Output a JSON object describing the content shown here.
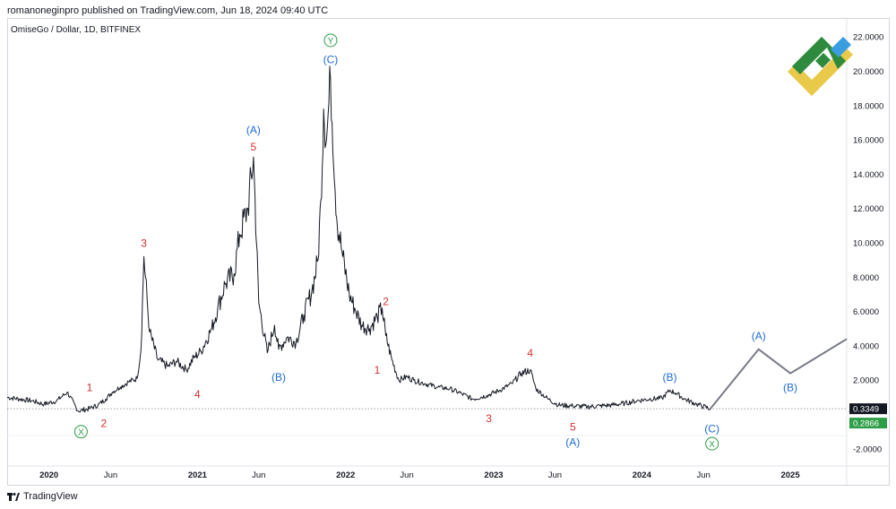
{
  "header": {
    "published_text": "romanoneginpro published on TradingView.com, Jun 18, 2024 09:40 UTC"
  },
  "footer": {
    "brand_text": "TradingView",
    "logo_icon": "tradingview-logo-icon"
  },
  "watermark_icon": "litefinance-logo-icon",
  "colors": {
    "price_line": "#131722",
    "projection": "#787b86",
    "wave_red": "#d32f2f",
    "wave_blue": "#1e6bd6",
    "wave_green": "#2e9e48",
    "price_badge": "#131722",
    "low_badge": "#2e9e48"
  },
  "chart_data": {
    "type": "line",
    "title": "OmiseGo / Dollar, 1D, BITFINEX",
    "y_axis": {
      "ticks": [
        -2,
        2,
        4,
        6,
        8,
        10,
        12,
        14,
        16,
        18,
        20,
        22
      ],
      "tick_labels": [
        "-2.0000",
        "2.0000",
        "4.0000",
        "6.0000",
        "8.0000",
        "10.0000",
        "12.0000",
        "14.0000",
        "16.0000",
        "18.0000",
        "20.0000",
        "22.0000"
      ],
      "range": [
        -3.0,
        23.0
      ]
    },
    "x_axis": {
      "range": [
        "2019-09-20",
        "2025-05-20"
      ],
      "tick_dates": [
        "2020-01-01",
        "2020-06-01",
        "2021-01-01",
        "2021-06-01",
        "2022-01-01",
        "2022-06-01",
        "2023-01-01",
        "2023-06-01",
        "2024-01-01",
        "2024-06-01",
        "2025-01-01"
      ],
      "tick_labels": [
        "2020",
        "Jun",
        "2021",
        "Jun",
        "2022",
        "Jun",
        "2023",
        "Jun",
        "2024",
        "Jun",
        "2025"
      ]
    },
    "series": [
      {
        "x": [
          "2019-09-20",
          "2019-10-20",
          "2019-11-20",
          "2019-12-20",
          "2020-01-20",
          "2020-02-15",
          "2020-03-13",
          "2020-04-10",
          "2020-05-01",
          "2020-05-20",
          "2020-06-05",
          "2020-06-25",
          "2020-07-15",
          "2020-08-05",
          "2020-08-15",
          "2020-08-22",
          "2020-09-05",
          "2020-09-25",
          "2020-10-20",
          "2020-11-10",
          "2020-12-05",
          "2020-12-23",
          "2021-01-10",
          "2021-02-05",
          "2021-02-20",
          "2021-03-10",
          "2021-04-01",
          "2021-04-15",
          "2021-05-05",
          "2021-05-19",
          "2021-06-01",
          "2021-06-22",
          "2021-07-10",
          "2021-07-20",
          "2021-08-10",
          "2021-09-01",
          "2021-09-20",
          "2021-10-10",
          "2021-10-25",
          "2021-11-01",
          "2021-11-08",
          "2021-11-15",
          "2021-11-25",
          "2021-12-10",
          "2021-12-25",
          "2022-01-10",
          "2022-01-25",
          "2022-02-10",
          "2022-03-01",
          "2022-03-20",
          "2022-04-01",
          "2022-04-10",
          "2022-04-25",
          "2022-05-12",
          "2022-06-01",
          "2022-06-18",
          "2022-07-15",
          "2022-08-15",
          "2022-09-15",
          "2022-10-15",
          "2022-11-10",
          "2022-12-15",
          "2023-01-15",
          "2023-02-15",
          "2023-03-10",
          "2023-04-01",
          "2023-04-15",
          "2023-05-15",
          "2023-06-10",
          "2023-07-15",
          "2023-08-20",
          "2023-09-20",
          "2023-10-20",
          "2023-11-20",
          "2023-12-20",
          "2024-01-20",
          "2024-02-20",
          "2024-03-10",
          "2024-03-25",
          "2024-04-15",
          "2024-05-15",
          "2024-06-18"
        ],
        "values": [
          1.0,
          0.9,
          0.8,
          0.6,
          0.8,
          1.3,
          0.2,
          0.35,
          0.55,
          0.9,
          1.3,
          1.6,
          1.9,
          2.1,
          3.8,
          9.2,
          4.8,
          3.2,
          2.8,
          3.1,
          2.6,
          3.3,
          3.7,
          5.0,
          6.2,
          7.6,
          8.2,
          10.5,
          12.0,
          15.0,
          6.5,
          3.6,
          5.2,
          3.8,
          4.5,
          4.2,
          5.8,
          7.2,
          9.0,
          12.5,
          17.8,
          16.0,
          19.5,
          11.5,
          9.2,
          7.0,
          6.1,
          5.2,
          5.0,
          5.7,
          6.2,
          4.6,
          3.2,
          2.0,
          2.2,
          2.0,
          1.8,
          1.6,
          1.5,
          1.2,
          0.9,
          1.1,
          1.4,
          1.8,
          2.4,
          2.6,
          1.5,
          0.9,
          0.55,
          0.5,
          0.45,
          0.5,
          0.55,
          0.65,
          0.8,
          0.9,
          0.95,
          1.4,
          1.25,
          0.9,
          0.6,
          0.3349
        ]
      },
      {
        "x": [
          "2024-06-18",
          "2024-10-15",
          "2025-01-01",
          "2025-05-20"
        ],
        "values": [
          0.3349,
          3.8,
          2.4,
          4.4
        ]
      }
    ],
    "price_labels": [
      {
        "value": 0.3349,
        "label": "0.3349"
      },
      {
        "value": -0.5,
        "label": "0.2866"
      }
    ],
    "annotations": [
      {
        "text": "1",
        "x": "2020-04-10",
        "y": 1.6,
        "color": "red"
      },
      {
        "text": "2",
        "x": "2020-05-15",
        "y": -0.5,
        "color": "red"
      },
      {
        "text": "X",
        "x": "2020-03-20",
        "y": -1.0,
        "color": "green",
        "circled": true
      },
      {
        "text": "3",
        "x": "2020-08-22",
        "y": 10.0,
        "color": "red"
      },
      {
        "text": "4",
        "x": "2021-01-01",
        "y": 1.2,
        "color": "red"
      },
      {
        "text": "5",
        "x": "2021-05-19",
        "y": 15.6,
        "color": "red"
      },
      {
        "text": "(A)",
        "x": "2021-05-19",
        "y": 16.6,
        "color": "blue"
      },
      {
        "text": "(B)",
        "x": "2021-07-20",
        "y": 2.2,
        "color": "blue"
      },
      {
        "text": "(C)",
        "x": "2021-11-25",
        "y": 20.7,
        "color": "blue"
      },
      {
        "text": "Y",
        "x": "2021-11-25",
        "y": 21.8,
        "color": "green",
        "circled": true
      },
      {
        "text": "1",
        "x": "2022-03-20",
        "y": 2.6,
        "color": "red"
      },
      {
        "text": "2",
        "x": "2022-04-10",
        "y": 6.6,
        "color": "red"
      },
      {
        "text": "3",
        "x": "2022-12-20",
        "y": -0.2,
        "color": "red"
      },
      {
        "text": "4",
        "x": "2023-04-01",
        "y": 3.6,
        "color": "red"
      },
      {
        "text": "5",
        "x": "2023-07-15",
        "y": -0.7,
        "color": "red"
      },
      {
        "text": "(A)",
        "x": "2023-07-15",
        "y": -1.6,
        "color": "blue"
      },
      {
        "text": "(B)",
        "x": "2024-03-10",
        "y": 2.2,
        "color": "blue"
      },
      {
        "text": "(C)",
        "x": "2024-06-22",
        "y": -0.8,
        "color": "blue"
      },
      {
        "text": "X",
        "x": "2024-06-22",
        "y": -1.7,
        "color": "green",
        "circled": true
      },
      {
        "text": "(A)",
        "x": "2024-10-15",
        "y": 4.6,
        "color": "blue"
      },
      {
        "text": "(B)",
        "x": "2025-01-01",
        "y": 1.6,
        "color": "blue"
      }
    ],
    "grid": false,
    "legend": "none"
  }
}
